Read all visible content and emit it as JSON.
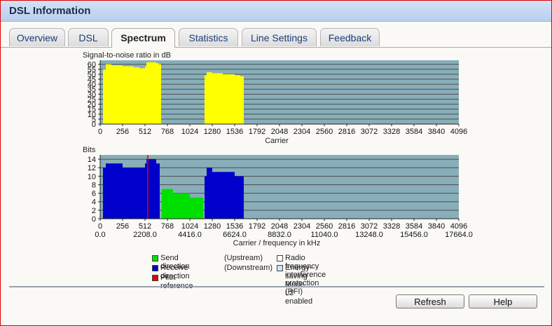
{
  "window": {
    "title": "DSL Information"
  },
  "tabs": [
    {
      "label": "Overview",
      "active": false
    },
    {
      "label": "DSL",
      "active": false
    },
    {
      "label": "Spectrum",
      "active": true
    },
    {
      "label": "Statistics",
      "active": false
    },
    {
      "label": "Line Settings",
      "active": false
    },
    {
      "label": "Feedback",
      "active": false
    }
  ],
  "chart_data": [
    {
      "type": "bar",
      "title": "Signal-to-noise ratio in dB",
      "xlabel": "Carrier",
      "ylabel": "",
      "xlim": [
        0,
        4096
      ],
      "ylim": [
        0,
        64
      ],
      "grid": true,
      "y_ticks": [
        0,
        5,
        10,
        15,
        20,
        25,
        30,
        35,
        40,
        45,
        50,
        55,
        60
      ],
      "x_ticks": [
        0,
        256,
        512,
        768,
        1024,
        1280,
        1536,
        1792,
        2048,
        2304,
        2560,
        2816,
        3072,
        3328,
        3584,
        3840,
        4096
      ],
      "background_color": "#87aeb9",
      "series": [
        {
          "color": "#ffff00",
          "segments": [
            {
              "x": [
                32,
                64,
                128,
                256,
                384,
                448,
                512,
                528,
                544,
                640,
                672,
                696
              ],
              "y": [
                55,
                60,
                59,
                58,
                57,
                56,
                58,
                62,
                62,
                61,
                60,
                60
              ]
            },
            {
              "x": [
                1192,
                1216,
                1280,
                1400,
                1536,
                1600,
                1640
              ],
              "y": [
                49,
                52,
                51,
                50,
                49,
                48,
                47
              ]
            }
          ]
        }
      ]
    },
    {
      "type": "bar",
      "title": "Bits",
      "xlabel": "Carrier / frequency in kHz",
      "ylabel": "",
      "xlim": [
        0,
        4096
      ],
      "ylim": [
        0,
        15
      ],
      "grid": true,
      "y_ticks": [
        0,
        2,
        4,
        6,
        8,
        10,
        12,
        14
      ],
      "x_ticks": [
        0,
        256,
        512,
        768,
        1024,
        1280,
        1536,
        1792,
        2048,
        2304,
        2560,
        2816,
        3072,
        3328,
        3584,
        3840,
        4096
      ],
      "x_ticks_khz": [
        "0.0",
        "2208.0",
        "4416.0",
        "6624.0",
        "8832.0",
        "11040.0",
        "13248.0",
        "15456.0",
        "17664.0"
      ],
      "background_color": "#87aeb9",
      "series": [
        {
          "name": "Receive direction",
          "color": "#0000cc",
          "segments": [
            {
              "x": [
                32,
                64,
                128,
                256,
                320,
                448,
                512,
                528,
                560,
                640,
                680
              ],
              "y": [
                12,
                13,
                13,
                12,
                12,
                12,
                13,
                14,
                14,
                13,
                13
              ]
            },
            {
              "x": [
                1192,
                1216,
                1280,
                1400,
                1536,
                1600,
                1640
              ],
              "y": [
                10,
                12,
                11,
                11,
                10,
                10,
                10
              ]
            }
          ]
        },
        {
          "name": "Send direction",
          "color": "#00e000",
          "segments": [
            {
              "x": [
                704,
                768,
                832,
                896,
                960,
                1024,
                1088,
                1176
              ],
              "y": [
                7,
                7,
                6,
                6,
                6,
                5,
                5,
                4
              ]
            }
          ]
        },
        {
          "name": "Pilot reference",
          "color": "#e00000",
          "marker_x": [
            544
          ]
        }
      ]
    }
  ],
  "legend": [
    {
      "color": "#00e000",
      "label": "Send direction",
      "note": "(Upstream)"
    },
    {
      "color": "#0000cc",
      "label": "Receive direction",
      "note": "(Downstream)"
    },
    {
      "color": "#e00000",
      "label": "Pilot reference",
      "note": ""
    },
    {
      "color": "#ffffff",
      "label": "Radio frequency interference protection (RFI)",
      "note": ""
    },
    {
      "color": "#cfe4ef",
      "label": "Energy-saving Mode L2 enabled",
      "note": ""
    }
  ],
  "buttons": {
    "refresh": "Refresh",
    "help": "Help"
  }
}
